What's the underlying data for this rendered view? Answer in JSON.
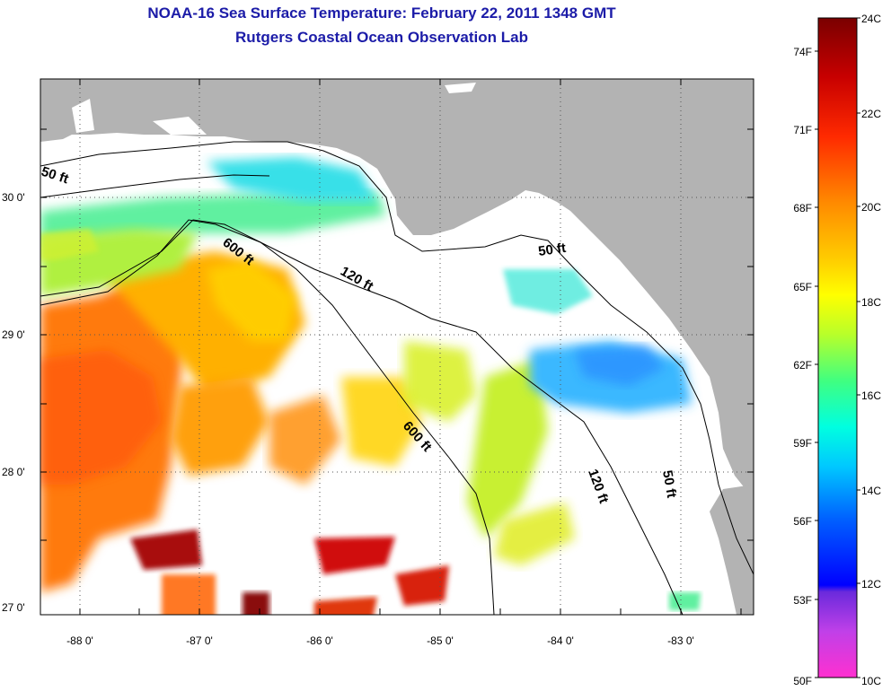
{
  "title": "NOAA-16 Sea Surface Temperature:  February 22, 2011 1348 GMT",
  "subtitle": "Rutgers Coastal Ocean Observation Lab",
  "axes": {
    "lat_ticks": [
      "30 0'",
      "29 0'",
      "28 0'",
      "27 0'"
    ],
    "lon_ticks": [
      "-88 0'",
      "-87 0'",
      "-86 0'",
      "-85 0'",
      "-84 0'",
      "-83 0'"
    ]
  },
  "depth_labels": [
    "50 ft",
    "600 ft",
    "120 ft",
    "50 ft",
    "600 ft",
    "120 ft",
    "50 ft"
  ],
  "colorbar": {
    "celsius": [
      "24C",
      "22C",
      "20C",
      "18C",
      "16C",
      "14C",
      "12C",
      "10C"
    ],
    "fahrenheit": [
      "74F",
      "71F",
      "68F",
      "65F",
      "62F",
      "59F",
      "56F",
      "53F",
      "50F"
    ]
  },
  "colors": {
    "title": "#1c1ca8",
    "land": "#b3b3b3",
    "no_data": "#ffffff",
    "warm": "#cc2200",
    "cool": "#22c8ff"
  }
}
